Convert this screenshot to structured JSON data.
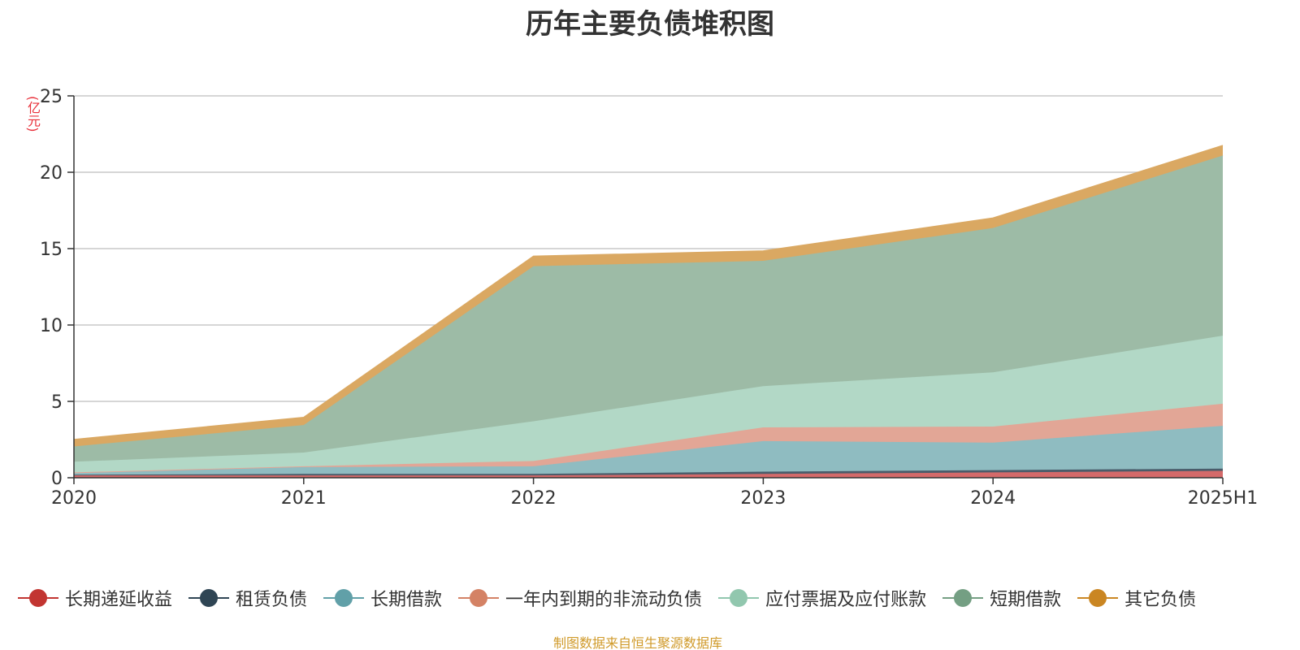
{
  "chart_data": {
    "type": "area",
    "stacked": true,
    "title": "历年主要负债堆积图",
    "ylabel": "(亿元)",
    "xlabel": "",
    "categories": [
      "2020",
      "2021",
      "2022",
      "2023",
      "2024",
      "2025H1"
    ],
    "ylim": [
      0,
      25
    ],
    "yticks": [
      0,
      5,
      10,
      15,
      20,
      25
    ],
    "grid": true,
    "legend_position": "bottom",
    "series": [
      {
        "name": "长期递延收益",
        "color": "#c23531",
        "fill": "#d46a6a",
        "values": [
          0.15,
          0.15,
          0.15,
          0.25,
          0.35,
          0.45
        ]
      },
      {
        "name": "租赁负债",
        "color": "#2f4554",
        "fill": "#4a5c6a",
        "values": [
          0.05,
          0.1,
          0.1,
          0.15,
          0.15,
          0.15
        ]
      },
      {
        "name": "长期借款",
        "color": "#61a0a8",
        "fill": "#8fbcc1",
        "values": [
          0.1,
          0.45,
          0.5,
          2.0,
          1.8,
          2.8
        ]
      },
      {
        "name": "一年内到期的非流动负债",
        "color": "#d48265",
        "fill": "#e2a696",
        "values": [
          0.05,
          0.05,
          0.35,
          0.9,
          1.05,
          1.45
        ]
      },
      {
        "name": "应付票据及应付账款",
        "color": "#91c7ae",
        "fill": "#b2d8c6",
        "values": [
          0.7,
          0.9,
          2.6,
          2.7,
          3.55,
          4.45
        ]
      },
      {
        "name": "短期借款",
        "color": "#749f83",
        "fill": "#9dbba6",
        "values": [
          1.0,
          1.8,
          10.15,
          8.2,
          9.45,
          11.8
        ]
      },
      {
        "name": "其它负债",
        "color": "#ca8622",
        "fill": "#daa862",
        "values": [
          0.45,
          0.5,
          0.65,
          0.65,
          0.65,
          0.65
        ]
      }
    ]
  },
  "source_note": "制图数据来自恒生聚源数据库"
}
